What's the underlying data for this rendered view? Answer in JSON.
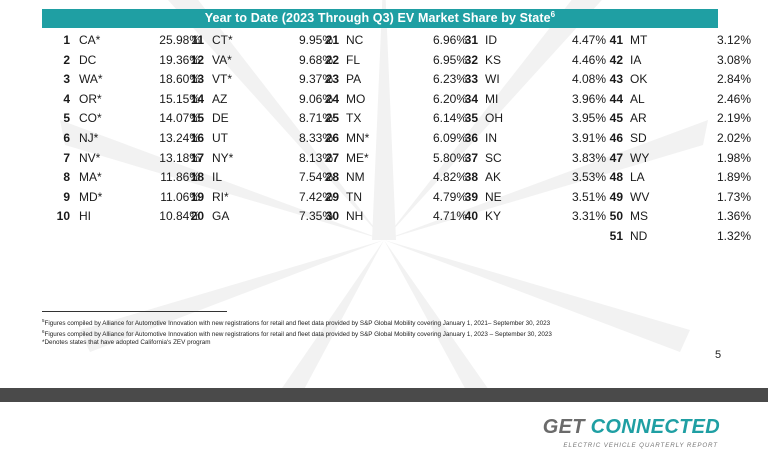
{
  "header": {
    "title": "Year to Date (2023 Through Q3) EV Market Share by State",
    "footnote_marker": "6"
  },
  "columns": [
    [
      {
        "rank": "1",
        "state": "CA*",
        "pct": "25.98%"
      },
      {
        "rank": "2",
        "state": "DC",
        "pct": "19.36%"
      },
      {
        "rank": "3",
        "state": "WA*",
        "pct": "18.60%"
      },
      {
        "rank": "4",
        "state": "OR*",
        "pct": "15.15%"
      },
      {
        "rank": "5",
        "state": "CO*",
        "pct": "14.07%"
      },
      {
        "rank": "6",
        "state": "NJ*",
        "pct": "13.24%"
      },
      {
        "rank": "7",
        "state": "NV*",
        "pct": "13.18%"
      },
      {
        "rank": "8",
        "state": "MA*",
        "pct": "11.86%"
      },
      {
        "rank": "9",
        "state": "MD*",
        "pct": "11.06%"
      },
      {
        "rank": "10",
        "state": "HI",
        "pct": "10.84%"
      }
    ],
    [
      {
        "rank": "11",
        "state": "CT*",
        "pct": "9.95%"
      },
      {
        "rank": "12",
        "state": "VA*",
        "pct": "9.68%"
      },
      {
        "rank": "13",
        "state": "VT*",
        "pct": "9.37%"
      },
      {
        "rank": "14",
        "state": "AZ",
        "pct": "9.06%"
      },
      {
        "rank": "15",
        "state": "DE",
        "pct": "8.71%"
      },
      {
        "rank": "16",
        "state": "UT",
        "pct": "8.33%"
      },
      {
        "rank": "17",
        "state": "NY*",
        "pct": "8.13%"
      },
      {
        "rank": "18",
        "state": "IL",
        "pct": "7.54%"
      },
      {
        "rank": "19",
        "state": "RI*",
        "pct": "7.42%"
      },
      {
        "rank": "20",
        "state": "GA",
        "pct": "7.35%"
      }
    ],
    [
      {
        "rank": "21",
        "state": "NC",
        "pct": "6.96%"
      },
      {
        "rank": "22",
        "state": "FL",
        "pct": "6.95%"
      },
      {
        "rank": "23",
        "state": "PA",
        "pct": "6.23%"
      },
      {
        "rank": "24",
        "state": "MO",
        "pct": "6.20%"
      },
      {
        "rank": "25",
        "state": "TX",
        "pct": "6.14%"
      },
      {
        "rank": "26",
        "state": "MN*",
        "pct": "6.09%"
      },
      {
        "rank": "27",
        "state": "ME*",
        "pct": "5.80%"
      },
      {
        "rank": "28",
        "state": "NM",
        "pct": "4.82%"
      },
      {
        "rank": "29",
        "state": "TN",
        "pct": "4.79%"
      },
      {
        "rank": "30",
        "state": "NH",
        "pct": "4.71%"
      }
    ],
    [
      {
        "rank": "31",
        "state": "ID",
        "pct": "4.47%"
      },
      {
        "rank": "32",
        "state": "KS",
        "pct": "4.46%"
      },
      {
        "rank": "33",
        "state": "WI",
        "pct": "4.08%"
      },
      {
        "rank": "34",
        "state": "MI",
        "pct": "3.96%"
      },
      {
        "rank": "35",
        "state": "OH",
        "pct": "3.95%"
      },
      {
        "rank": "36",
        "state": "IN",
        "pct": "3.91%"
      },
      {
        "rank": "37",
        "state": "SC",
        "pct": "3.83%"
      },
      {
        "rank": "38",
        "state": "AK",
        "pct": "3.53%"
      },
      {
        "rank": "39",
        "state": "NE",
        "pct": "3.51%"
      },
      {
        "rank": "40",
        "state": "KY",
        "pct": "3.31%"
      }
    ],
    [
      {
        "rank": "41",
        "state": "MT",
        "pct": "3.12%"
      },
      {
        "rank": "42",
        "state": "IA",
        "pct": "3.08%"
      },
      {
        "rank": "43",
        "state": "OK",
        "pct": "2.84%"
      },
      {
        "rank": "44",
        "state": "AL",
        "pct": "2.46%"
      },
      {
        "rank": "45",
        "state": "AR",
        "pct": "2.19%"
      },
      {
        "rank": "46",
        "state": "SD",
        "pct": "2.02%"
      },
      {
        "rank": "47",
        "state": "WY",
        "pct": "1.98%"
      },
      {
        "rank": "48",
        "state": "LA",
        "pct": "1.89%"
      },
      {
        "rank": "49",
        "state": "WV",
        "pct": "1.73%"
      },
      {
        "rank": "50",
        "state": "MS",
        "pct": "1.36%"
      },
      {
        "rank": "51",
        "state": "ND",
        "pct": "1.32%"
      }
    ]
  ],
  "footnotes": [
    {
      "marker": "5",
      "text": "Figures compiled by Alliance for Automotive Innovation with new registrations for retail and fleet data provided by S&P Global Mobility covering January 1, 2021– September 30, 2023"
    },
    {
      "marker": "6",
      "text": "Figures compiled by Alliance for Automotive Innovation with new registrations for retail and fleet data provided by S&P Global Mobility covering January 1, 2023 – September 30, 2023"
    },
    {
      "marker": "",
      "text": "*Denotes states that have adopted California's ZEV program"
    }
  ],
  "page_number": "5",
  "brand": {
    "name_part1": "GET ",
    "name_part2": "CONNECTED",
    "tagline": "ELECTRIC VEHICLE QUARTERLY REPORT"
  },
  "colors": {
    "accent": "#1f9fa3",
    "dark_band": "#4a4a4a",
    "logo_gray": "#6b6b6b"
  }
}
